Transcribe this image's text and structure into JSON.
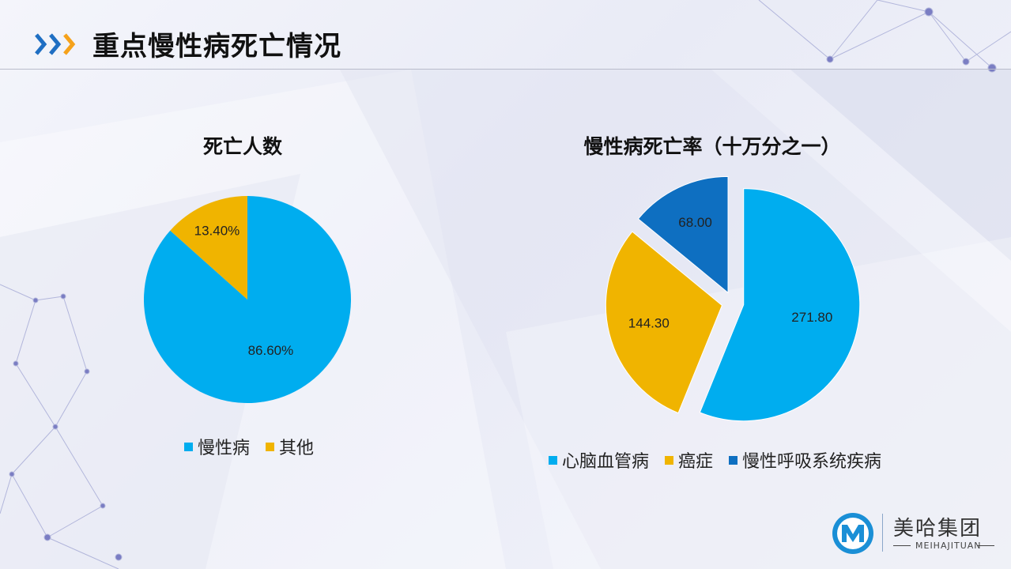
{
  "page": {
    "title": "重点慢性病死亡情况"
  },
  "colors": {
    "accent_blue": "#1f6fc3",
    "accent_orange": "#f5a21b"
  },
  "chart_data": [
    {
      "type": "pie",
      "title": "死亡人数",
      "series": [
        {
          "name": "慢性病",
          "value": 86.6,
          "label": "86.60%",
          "color": "#00adef"
        },
        {
          "name": "其他",
          "value": 13.4,
          "label": "13.40%",
          "color": "#f0b400"
        }
      ],
      "legend": "bottom"
    },
    {
      "type": "pie",
      "title": "慢性病死亡率（十万分之一）",
      "exploded": true,
      "series": [
        {
          "name": "心脑血管病",
          "value": 271.8,
          "label": "271.80",
          "color": "#00adef"
        },
        {
          "name": "癌症",
          "value": 144.3,
          "label": "144.30",
          "color": "#f0b400"
        },
        {
          "name": "慢性呼吸系统疾病",
          "value": 68.0,
          "label": "68.00",
          "color": "#0e6fc1"
        }
      ],
      "legend": "bottom"
    }
  ],
  "logo": {
    "name": "美哈集团",
    "subtitle": "MEIHAJITUAN",
    "icon": "m-logo-icon"
  }
}
